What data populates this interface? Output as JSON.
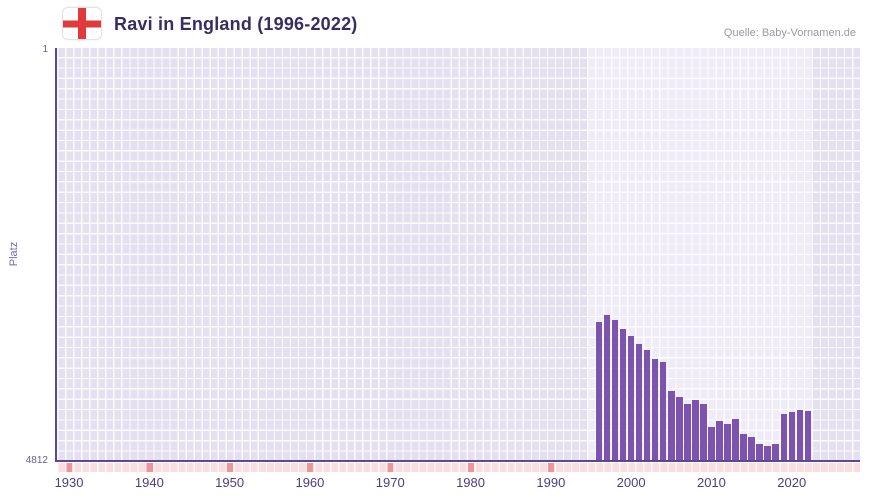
{
  "header": {
    "title": "Ravi in England (1996-2022)",
    "source": "Quelle: Baby-Vornamen.de",
    "icon": "england-flag-icon"
  },
  "axes": {
    "y_label": "Platz",
    "y_top_tick": "1",
    "y_bottom_tick": "4812"
  },
  "colors": {
    "bar": "#7d54ad",
    "grid_cell": "#e4e0f0",
    "band_cell": "#efecf8",
    "axis_line": "#5b4894",
    "tick_text": "#4d3c86",
    "y_tick_text": "#6a5a9e",
    "ylabel_text": "#7668b4",
    "title_text": "#392c61",
    "source_text": "#9a9aa2",
    "strip_bg": "#f8dee1",
    "strip_mark": "#f0939b",
    "flag_red": "#e03a3c"
  },
  "chart_data": {
    "type": "bar",
    "title": "Ravi in England (1996-2022)",
    "ylabel": "Platz",
    "y_min": 1,
    "y_max": 4812,
    "y_inverted": true,
    "y_axis_note": "rank 1 at top, rank 4812 at bottom; taller bar = better rank",
    "x_domain_start": 1929,
    "x_domain_end": 2028,
    "x_ticks": [
      1930,
      1940,
      1950,
      1960,
      1970,
      1980,
      1990,
      2000,
      2010,
      2020
    ],
    "highlight_band": {
      "start": 1995,
      "end": 2022
    },
    "no_data_decade_marks": [
      1930,
      1940,
      1950,
      1960,
      1970,
      1980,
      1990
    ],
    "years": [
      1996,
      1997,
      1998,
      1999,
      2000,
      2001,
      2002,
      2003,
      2004,
      2005,
      2006,
      2007,
      2008,
      2009,
      2010,
      2011,
      2012,
      2013,
      2014,
      2015,
      2016,
      2017,
      2018,
      2019,
      2020,
      2021,
      2022
    ],
    "values": [
      3185,
      3105,
      3160,
      3265,
      3350,
      3440,
      3510,
      3615,
      3650,
      3985,
      4055,
      4140,
      4090,
      4140,
      4405,
      4335,
      4370,
      4310,
      4485,
      4520,
      4605,
      4625,
      4605,
      4255,
      4230,
      4210,
      4220
    ],
    "legend": null,
    "grid": true
  }
}
